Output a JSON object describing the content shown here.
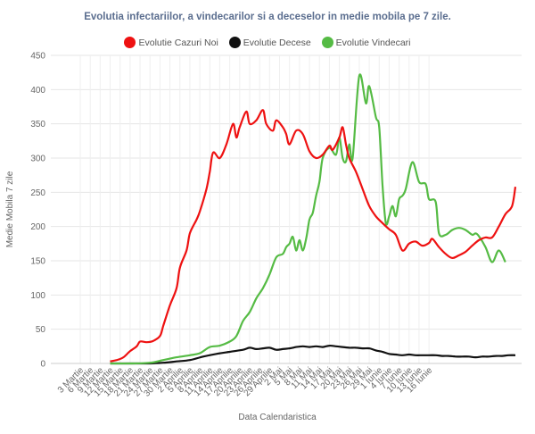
{
  "chart_data": {
    "type": "line",
    "title": "Evolutia infectariilor, a vindecarilor si a deceselor in medie mobila pe 7 zile.",
    "xlabel": "Data Calendaristica",
    "ylabel": "Medie Mobila 7 zile",
    "ylim": [
      0,
      450
    ],
    "yticks": [
      0,
      50,
      100,
      150,
      200,
      250,
      300,
      350,
      400,
      450
    ],
    "grid": true,
    "legend_position": "top",
    "x_tick_labels": [
      "3 Martie",
      "6 Martie",
      "9 Martie",
      "12 Martie",
      "15 Martie",
      "18 Martie",
      "21 Martie",
      "24 Martie",
      "27 Martie",
      "30 Martie",
      "2 Aprilie",
      "5 Aprilie",
      "8 Aprilie",
      "11 Aprilie",
      "14 Aprilie",
      "17 Aprilie",
      "20 Aprilie",
      "23 Aprilie",
      "26 Aprilie",
      "29 Aprilie",
      "2 Mai",
      "5 Mai",
      "8 Mai",
      "11 Mai",
      "14 Mai",
      "17 Mai",
      "20 Mai",
      "23 Mai",
      "26 Mai",
      "29 Mai",
      "1 Iunie",
      "4 Iunie",
      "7 Iunie",
      "10 Iunie",
      "13 Iunie",
      "16 Iunie"
    ],
    "x_start": "3 Martie",
    "series": [
      {
        "name": "Evolutie Cazuri Noi",
        "color": "#ee1111",
        "values": [
          [
            9,
            3
          ],
          [
            11,
            5
          ],
          [
            13,
            9
          ],
          [
            15,
            18
          ],
          [
            17,
            25
          ],
          [
            18,
            32
          ],
          [
            20,
            31
          ],
          [
            22,
            33
          ],
          [
            24,
            40
          ],
          [
            25,
            55
          ],
          [
            27,
            85
          ],
          [
            29,
            110
          ],
          [
            30,
            140
          ],
          [
            32,
            165
          ],
          [
            33,
            190
          ],
          [
            35,
            210
          ],
          [
            36,
            222
          ],
          [
            38,
            255
          ],
          [
            39,
            280
          ],
          [
            40,
            308
          ],
          [
            42,
            300
          ],
          [
            44,
            320
          ],
          [
            46,
            350
          ],
          [
            47,
            330
          ],
          [
            48,
            345
          ],
          [
            50,
            368
          ],
          [
            51,
            350
          ],
          [
            53,
            355
          ],
          [
            55,
            370
          ],
          [
            56,
            350
          ],
          [
            58,
            340
          ],
          [
            59,
            355
          ],
          [
            61,
            345
          ],
          [
            62,
            335
          ],
          [
            63,
            320
          ],
          [
            65,
            340
          ],
          [
            67,
            335
          ],
          [
            69,
            310
          ],
          [
            71,
            300
          ],
          [
            73,
            305
          ],
          [
            75,
            318
          ],
          [
            76,
            312
          ],
          [
            78,
            330
          ],
          [
            79,
            345
          ],
          [
            80,
            320
          ],
          [
            81,
            300
          ],
          [
            83,
            280
          ],
          [
            85,
            255
          ],
          [
            87,
            230
          ],
          [
            89,
            215
          ],
          [
            91,
            205
          ],
          [
            93,
            196
          ],
          [
            95,
            188
          ],
          [
            97,
            165
          ],
          [
            99,
            175
          ],
          [
            101,
            178
          ],
          [
            103,
            172
          ],
          [
            105,
            176
          ],
          [
            106,
            182
          ],
          [
            108,
            170
          ],
          [
            110,
            160
          ],
          [
            112,
            154
          ],
          [
            114,
            158
          ],
          [
            116,
            163
          ],
          [
            118,
            172
          ],
          [
            120,
            180
          ],
          [
            122,
            184
          ],
          [
            124,
            184
          ],
          [
            126,
            200
          ],
          [
            128,
            218
          ],
          [
            130,
            230
          ],
          [
            131,
            258
          ]
        ]
      },
      {
        "name": "Evolutie Decese",
        "color": "#111111",
        "values": [
          [
            9,
            0
          ],
          [
            15,
            0
          ],
          [
            21,
            0
          ],
          [
            25,
            1
          ],
          [
            29,
            3
          ],
          [
            33,
            5
          ],
          [
            37,
            10
          ],
          [
            41,
            14
          ],
          [
            45,
            17
          ],
          [
            49,
            20
          ],
          [
            51,
            23
          ],
          [
            53,
            21
          ],
          [
            55,
            22
          ],
          [
            57,
            23
          ],
          [
            59,
            20
          ],
          [
            61,
            21
          ],
          [
            63,
            22
          ],
          [
            65,
            24
          ],
          [
            67,
            25
          ],
          [
            69,
            24
          ],
          [
            71,
            25
          ],
          [
            73,
            24
          ],
          [
            75,
            26
          ],
          [
            77,
            25
          ],
          [
            79,
            24
          ],
          [
            81,
            23
          ],
          [
            83,
            23
          ],
          [
            85,
            22
          ],
          [
            87,
            22
          ],
          [
            89,
            19
          ],
          [
            91,
            17
          ],
          [
            93,
            14
          ],
          [
            95,
            13
          ],
          [
            97,
            12
          ],
          [
            99,
            13
          ],
          [
            101,
            12
          ],
          [
            103,
            12
          ],
          [
            105,
            12
          ],
          [
            107,
            12
          ],
          [
            109,
            11
          ],
          [
            111,
            11
          ],
          [
            113,
            10
          ],
          [
            115,
            10
          ],
          [
            117,
            10
          ],
          [
            119,
            9
          ],
          [
            121,
            10
          ],
          [
            123,
            10
          ],
          [
            125,
            11
          ],
          [
            127,
            11
          ],
          [
            129,
            12
          ],
          [
            131,
            12
          ]
        ]
      },
      {
        "name": "Evolutie Vindecari",
        "color": "#55bb44",
        "values": [
          [
            9,
            0
          ],
          [
            15,
            0
          ],
          [
            21,
            1
          ],
          [
            25,
            5
          ],
          [
            29,
            9
          ],
          [
            33,
            12
          ],
          [
            36,
            15
          ],
          [
            39,
            24
          ],
          [
            42,
            26
          ],
          [
            45,
            32
          ],
          [
            47,
            40
          ],
          [
            49,
            62
          ],
          [
            51,
            75
          ],
          [
            53,
            95
          ],
          [
            55,
            110
          ],
          [
            57,
            130
          ],
          [
            59,
            155
          ],
          [
            61,
            160
          ],
          [
            62,
            170
          ],
          [
            63,
            175
          ],
          [
            64,
            185
          ],
          [
            65,
            165
          ],
          [
            66,
            180
          ],
          [
            67,
            165
          ],
          [
            68,
            182
          ],
          [
            69,
            210
          ],
          [
            70,
            220
          ],
          [
            71,
            245
          ],
          [
            72,
            265
          ],
          [
            73,
            300
          ],
          [
            75,
            315
          ],
          [
            77,
            305
          ],
          [
            78,
            330
          ],
          [
            79,
            300
          ],
          [
            80,
            295
          ],
          [
            81,
            320
          ],
          [
            82,
            300
          ],
          [
            84,
            420
          ],
          [
            86,
            380
          ],
          [
            87,
            405
          ],
          [
            89,
            360
          ],
          [
            90,
            345
          ],
          [
            91,
            260
          ],
          [
            92,
            205
          ],
          [
            93,
            215
          ],
          [
            94,
            230
          ],
          [
            95,
            215
          ],
          [
            96,
            240
          ],
          [
            97,
            245
          ],
          [
            98,
            255
          ],
          [
            100,
            294
          ],
          [
            102,
            265
          ],
          [
            104,
            262
          ],
          [
            105,
            240
          ],
          [
            107,
            236
          ],
          [
            108,
            190
          ],
          [
            110,
            188
          ],
          [
            112,
            195
          ],
          [
            114,
            198
          ],
          [
            116,
            195
          ],
          [
            118,
            188
          ],
          [
            119,
            190
          ],
          [
            120,
            186
          ],
          [
            122,
            170
          ],
          [
            124,
            148
          ],
          [
            126,
            165
          ],
          [
            128,
            148
          ]
        ]
      }
    ]
  }
}
